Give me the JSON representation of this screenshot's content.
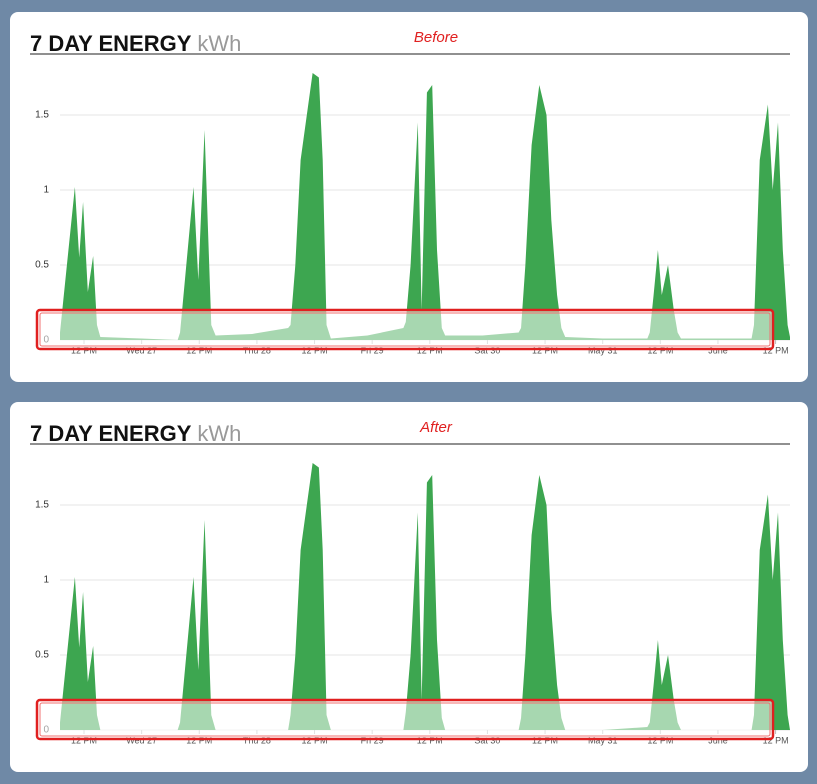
{
  "chart_data": [
    {
      "type": "area",
      "title": "7 DAY ENERGY",
      "unit": "kWh",
      "annotation": "Before",
      "color": "#3da650",
      "x": [
        7,
        10.1,
        11,
        11.8,
        12.8,
        13.9,
        14.7,
        15.4,
        24,
        31.5,
        32,
        34.8,
        35.8,
        37.1,
        38.5,
        39.4,
        47,
        54.5,
        55,
        56,
        57.1,
        59.6,
        60.9,
        61.7,
        62.5,
        63.4,
        71,
        78.5,
        79,
        80,
        81.5,
        82.3,
        83.4,
        84.5,
        85.5,
        86.5,
        87.2,
        95,
        102.5,
        103,
        103.9,
        105.2,
        106.8,
        108.3,
        109.3,
        110.5,
        111.4,
        112.2,
        120,
        129.3,
        129.8,
        130.6,
        131.5,
        132.3,
        133.6,
        134.8,
        135.6,
        136.3,
        144,
        151,
        151.5,
        152.7,
        154.4,
        155.4,
        156.5,
        157.5,
        158.5,
        159
      ],
      "values": [
        0.05,
        1.02,
        0.55,
        0.92,
        0.32,
        0.56,
        0.1,
        0.02,
        0.01,
        0,
        0.05,
        1.02,
        0.4,
        1.4,
        0.1,
        0.03,
        0.04,
        0.08,
        0.1,
        0.5,
        1.2,
        1.78,
        1.75,
        1.2,
        0.1,
        0.01,
        0.03,
        0.08,
        0.12,
        0.5,
        1.45,
        0.2,
        1.65,
        1.7,
        0.6,
        0.08,
        0.03,
        0.03,
        0.05,
        0.08,
        0.5,
        1.3,
        1.7,
        1.5,
        0.8,
        0.3,
        0.08,
        0.02,
        0.01,
        0.01,
        0.05,
        0.3,
        0.6,
        0.3,
        0.5,
        0.2,
        0.05,
        0.01,
        0.01,
        0.01,
        0.1,
        1.2,
        1.57,
        1.0,
        1.45,
        0.6,
        0.1,
        0.02
      ],
      "xlim": [
        7,
        159
      ],
      "xticks": [
        {
          "value": 12,
          "label": "12 PM"
        },
        {
          "value": 24,
          "label": "Wed 27"
        },
        {
          "value": 36,
          "label": "12 PM"
        },
        {
          "value": 48,
          "label": "Thu 28"
        },
        {
          "value": 60,
          "label": "12 PM"
        },
        {
          "value": 72,
          "label": "Fri 29"
        },
        {
          "value": 84,
          "label": "12 PM"
        },
        {
          "value": 96,
          "label": "Sat 30"
        },
        {
          "value": 108,
          "label": "12 PM"
        },
        {
          "value": 120,
          "label": "May 31"
        },
        {
          "value": 132,
          "label": "12 PM"
        },
        {
          "value": 144,
          "label": "June"
        },
        {
          "value": 156,
          "label": "12 PM"
        }
      ],
      "ylim": [
        0,
        1.8
      ],
      "yticks": [
        0,
        0.5,
        1,
        1.5
      ],
      "grid": true
    },
    {
      "type": "area",
      "title": "7 DAY ENERGY",
      "unit": "kWh",
      "annotation": "After",
      "color": "#3da650",
      "x": [
        7,
        10.1,
        11,
        11.8,
        12.8,
        13.9,
        14.7,
        15.4,
        24,
        31.5,
        32,
        34.8,
        35.8,
        37.1,
        38.5,
        39.4,
        47,
        54.5,
        55,
        56,
        57.1,
        59.6,
        60.9,
        61.7,
        62.5,
        63.4,
        71,
        78.5,
        79,
        80,
        81.5,
        82.3,
        83.4,
        84.5,
        85.5,
        86.5,
        87.2,
        95,
        102.5,
        103,
        103.9,
        105.2,
        106.8,
        108.3,
        109.3,
        110.5,
        111.4,
        112.2,
        120,
        129.3,
        129.8,
        130.6,
        131.5,
        132.3,
        133.6,
        134.8,
        135.6,
        136.3,
        144,
        151,
        151.5,
        152.7,
        154.4,
        155.4,
        156.5,
        157.5,
        158.5,
        159
      ],
      "values": [
        0.05,
        1.02,
        0.55,
        0.92,
        0.32,
        0.56,
        0.1,
        0,
        0,
        0,
        0.05,
        1.02,
        0.4,
        1.4,
        0.1,
        0,
        0,
        0,
        0.1,
        0.5,
        1.2,
        1.78,
        1.75,
        1.2,
        0.1,
        0,
        0,
        0,
        0.12,
        0.5,
        1.45,
        0.2,
        1.65,
        1.7,
        0.6,
        0.08,
        0,
        0,
        0,
        0.08,
        0.5,
        1.3,
        1.7,
        1.5,
        0.8,
        0.3,
        0.08,
        0,
        0,
        0.02,
        0.05,
        0.3,
        0.6,
        0.3,
        0.5,
        0.2,
        0.05,
        0,
        0,
        0,
        0.1,
        1.2,
        1.57,
        1.0,
        1.45,
        0.6,
        0.1,
        0
      ],
      "xlim": [
        7,
        159
      ],
      "xticks": [
        {
          "value": 12,
          "label": "12 PM"
        },
        {
          "value": 24,
          "label": "Wed 27"
        },
        {
          "value": 36,
          "label": "12 PM"
        },
        {
          "value": 48,
          "label": "Thu 28"
        },
        {
          "value": 60,
          "label": "12 PM"
        },
        {
          "value": 72,
          "label": "Fri 29"
        },
        {
          "value": 84,
          "label": "12 PM"
        },
        {
          "value": 96,
          "label": "Sat 30"
        },
        {
          "value": 108,
          "label": "12 PM"
        },
        {
          "value": 120,
          "label": "May 31"
        },
        {
          "value": 132,
          "label": "12 PM"
        },
        {
          "value": 144,
          "label": "June"
        },
        {
          "value": 156,
          "label": "12 PM"
        }
      ],
      "ylim": [
        0,
        1.8
      ],
      "yticks": [
        0,
        0.5,
        1,
        1.5
      ],
      "grid": true
    }
  ]
}
